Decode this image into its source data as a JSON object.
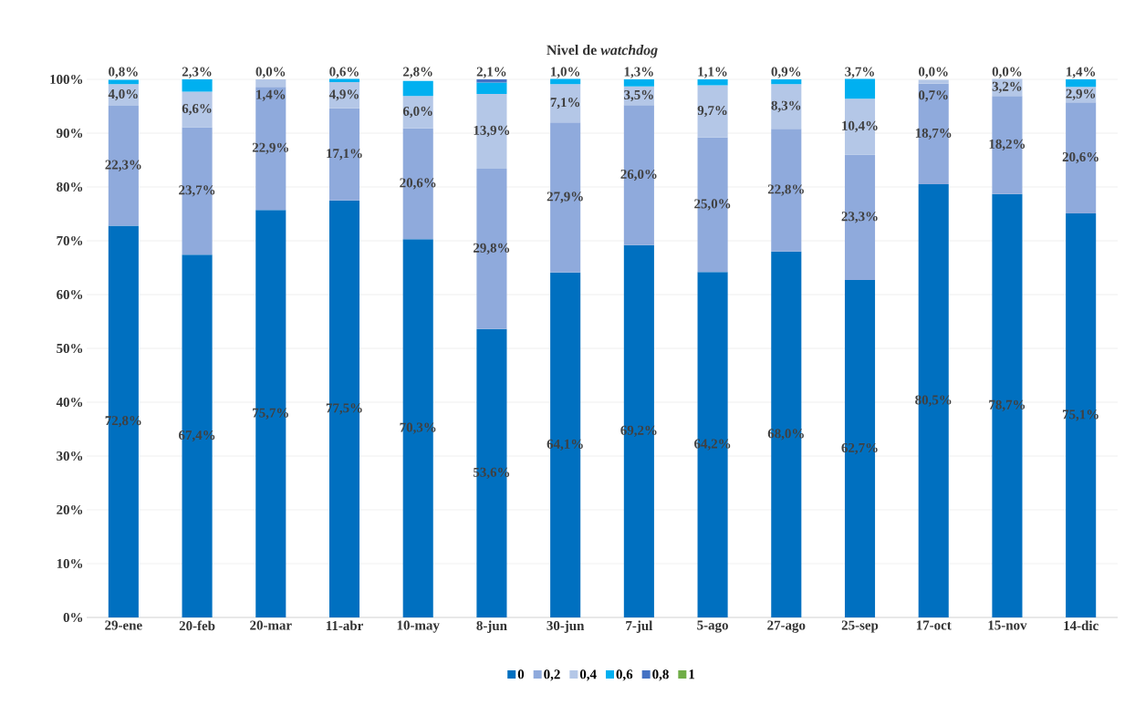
{
  "chart_data": {
    "type": "bar",
    "stacked": true,
    "title": "Nivel de *watchdog*",
    "categories": [
      "29-ene",
      "20-feb",
      "20-mar",
      "11-abr",
      "10-may",
      "8-jun",
      "30-jun",
      "7-jul",
      "5-ago",
      "27-ago",
      "25-sep",
      "17-oct",
      "15-nov",
      "14-dic"
    ],
    "series": [
      {
        "name": "0",
        "color": "#0070c0",
        "values": [
          72.8,
          67.4,
          75.7,
          77.5,
          70.3,
          53.6,
          64.1,
          69.2,
          64.2,
          68.0,
          62.7,
          80.5,
          78.7,
          75.1
        ],
        "value_labels": [
          "72,8%",
          "67,4%",
          "75,7%",
          "77,5%",
          "70,3%",
          "53,6%",
          "64,1%",
          "69,2%",
          "64,2%",
          "68,0%",
          "62,7%",
          "80,5%",
          "78,7%",
          "75,1%"
        ]
      },
      {
        "name": "0,2",
        "color": "#8faadc",
        "values": [
          22.3,
          23.7,
          22.9,
          17.1,
          20.6,
          29.8,
          27.9,
          26.0,
          25.0,
          22.8,
          23.3,
          18.7,
          18.2,
          20.6
        ],
        "value_labels": [
          "22,3%",
          "23,7%",
          "22,9%",
          "17,1%",
          "20,6%",
          "29,8%",
          "27,9%",
          "26,0%",
          "25,0%",
          "22,8%",
          "23,3%",
          "18,7%",
          "18,2%",
          "20,6%"
        ]
      },
      {
        "name": "0,4",
        "color": "#b4c7e7",
        "values": [
          4.0,
          6.6,
          1.4,
          4.9,
          6.0,
          13.9,
          7.1,
          3.5,
          9.7,
          8.3,
          10.4,
          0.7,
          3.2,
          2.9
        ],
        "value_labels": [
          "4,0%",
          "6,6%",
          "1,4%",
          "4,9%",
          "6,0%",
          "13,9%",
          "7,1%",
          "3,5%",
          "9,7%",
          "8,3%",
          "10,4%",
          "0,7%",
          "3,2%",
          "2,9%"
        ]
      },
      {
        "name": "0,6",
        "color": "#00b0f0",
        "values": [
          0.8,
          2.3,
          0.0,
          0.6,
          2.8,
          2.1,
          1.0,
          1.3,
          1.1,
          0.9,
          3.7,
          0.0,
          0.0,
          1.4
        ],
        "value_labels": [
          "0,8%",
          "2,3%",
          "0,0%",
          "0,6%",
          "2,8%",
          "2,1%",
          "1,0%",
          "1,3%",
          "1,1%",
          "0,9%",
          "3,7%",
          "0,0%",
          "0,0%",
          "1,4%"
        ]
      },
      {
        "name": "0,8",
        "color": "#4472c4",
        "values": [
          null,
          null,
          null,
          null,
          null,
          0.6,
          null,
          null,
          null,
          null,
          null,
          null,
          null,
          null
        ]
      },
      {
        "name": "1",
        "color": "#70ad47",
        "values": [
          null,
          null,
          null,
          null,
          null,
          null,
          null,
          null,
          null,
          null,
          null,
          null,
          null,
          null
        ]
      }
    ],
    "ylim": [
      0,
      100
    ],
    "yticks": [
      {
        "value": 0,
        "label": "0%"
      },
      {
        "value": 10,
        "label": "10%"
      },
      {
        "value": 20,
        "label": "20%"
      },
      {
        "value": 30,
        "label": "30%"
      },
      {
        "value": 40,
        "label": "40%"
      },
      {
        "value": 50,
        "label": "50%"
      },
      {
        "value": 60,
        "label": "60%"
      },
      {
        "value": 70,
        "label": "70%"
      },
      {
        "value": 80,
        "label": "80%"
      },
      {
        "value": 90,
        "label": "90%"
      },
      {
        "value": 100,
        "label": "100%"
      }
    ],
    "grid": "y",
    "legend": "bottom"
  }
}
